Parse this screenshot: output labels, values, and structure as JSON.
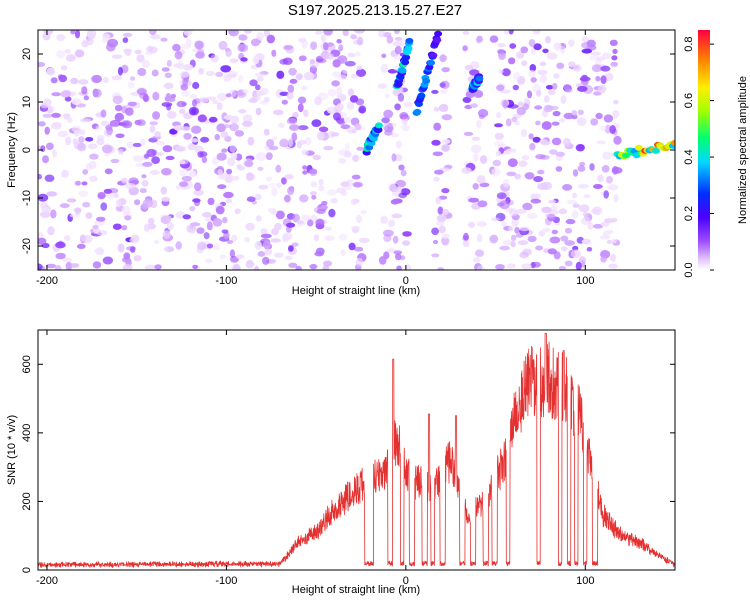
{
  "title": "S197.2025.213.15.27.E27",
  "chart_data": [
    {
      "type": "heatmap",
      "xlabel": "Height of straight line (km)",
      "ylabel": "Frequency (Hz)",
      "xlim": [
        -205,
        150
      ],
      "ylim": [
        -25,
        25
      ],
      "xticks": [
        -200,
        -100,
        0,
        100
      ],
      "yticks": [
        -20,
        -10,
        0,
        10,
        20
      ],
      "colorbar": {
        "label": "Normalized spectral amplitude",
        "range": [
          0.0,
          0.85
        ],
        "ticks": [
          0.0,
          0.2,
          0.4,
          0.6,
          0.8
        ],
        "tick_labels": [
          "0.0",
          "0.2",
          "0.4",
          "0.6",
          "0.8"
        ],
        "colormap": "rainbow (white at 0, purple, blue, cyan, green, yellow, orange, red at max)"
      },
      "blank_regions_x": [
        [
          -23,
          -14
        ],
        [
          2,
          16
        ],
        [
          24,
          33
        ],
        [
          44,
          48
        ],
        [
          118,
          150
        ]
      ],
      "features": [
        {
          "x": [
            -22,
            -15
          ],
          "y": [
            0,
            5
          ],
          "peak": 0.45
        },
        {
          "x": [
            -5,
            2
          ],
          "y": [
            13,
            22
          ],
          "peak": 0.45
        },
        {
          "x": [
            6,
            18
          ],
          "y": [
            8,
            24
          ],
          "peak": 0.4
        },
        {
          "x": [
            37,
            41
          ],
          "y": [
            13,
            15
          ],
          "peak": 0.4
        },
        {
          "x": [
            118,
            150
          ],
          "y": [
            -1,
            1
          ],
          "peak": 0.85
        }
      ]
    },
    {
      "type": "line",
      "xlabel": "Height of straight line (km)",
      "ylabel": "SNR (10 * v/v)",
      "xlim": [
        -205,
        150
      ],
      "ylim": [
        0,
        700
      ],
      "xticks": [
        -200,
        -100,
        0,
        100
      ],
      "yticks": [
        0,
        200,
        400,
        600
      ],
      "series": [
        {
          "color": "#e53030",
          "profile": [
            [
              -205,
              15
            ],
            [
              -70,
              18
            ],
            [
              -60,
              80
            ],
            [
              -50,
              110
            ],
            [
              -40,
              175
            ],
            [
              -30,
              230
            ],
            [
              -20,
              260
            ],
            [
              -10,
              300
            ],
            [
              -5,
              380
            ],
            [
              0,
              280
            ],
            [
              5,
              260
            ],
            [
              15,
              230
            ],
            [
              25,
              320
            ],
            [
              35,
              160
            ],
            [
              45,
              210
            ],
            [
              55,
              320
            ],
            [
              60,
              450
            ],
            [
              70,
              560
            ],
            [
              80,
              560
            ],
            [
              90,
              520
            ],
            [
              97,
              450
            ],
            [
              103,
              320
            ],
            [
              110,
              160
            ],
            [
              120,
              100
            ],
            [
              130,
              80
            ],
            [
              140,
              45
            ],
            [
              150,
              15
            ]
          ],
          "dips": [
            [
              -23,
              -18
            ],
            [
              -10,
              -7
            ],
            [
              -3,
              -1
            ],
            [
              2,
              5
            ],
            [
              9,
              12
            ],
            [
              14,
              16
            ],
            [
              19,
              22
            ],
            [
              30,
              33
            ],
            [
              36,
              39
            ],
            [
              43,
              46
            ],
            [
              48,
              51
            ],
            [
              56,
              58
            ],
            [
              73,
              75
            ],
            [
              85,
              87
            ],
            [
              90,
              92
            ],
            [
              94,
              96
            ],
            [
              99,
              101
            ],
            [
              104,
              107
            ]
          ],
          "spikes": [
            [
              -7,
              615
            ],
            [
              13,
              455
            ],
            [
              28,
              450
            ],
            [
              78,
              690
            ],
            [
              88,
              640
            ]
          ]
        }
      ]
    }
  ]
}
